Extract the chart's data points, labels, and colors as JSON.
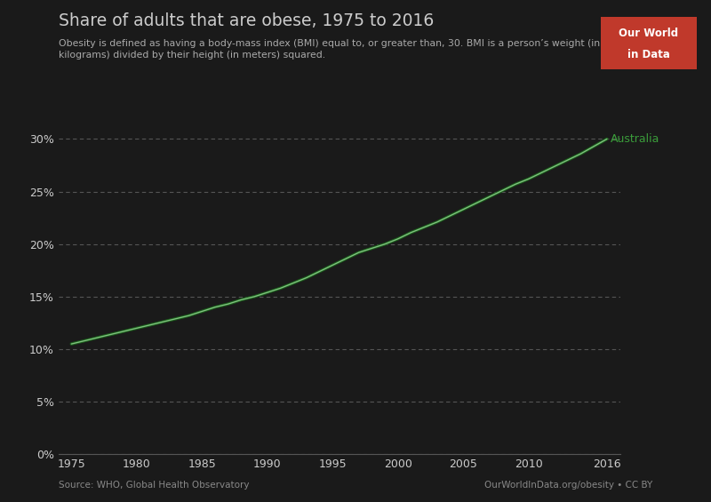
{
  "title": "Share of adults that are obese, 1975 to 2016",
  "subtitle": "Obesity is defined as having a body-mass index (BMI) equal to, or greater than, 30. BMI is a person’s weight (in\nkilograms) divided by their height (in meters) squared.",
  "source_left": "Source: WHO, Global Health Observatory",
  "source_right": "OurWorldInData.org/obesity • CC BY",
  "logo_text1": "Our World",
  "logo_text2": "in Data",
  "background_color": "#1a1a1a",
  "text_color": "#cccccc",
  "title_color": "#cccccc",
  "grid_color": "#555555",
  "line_color_dark": "#1a5e1a",
  "line_color_light": "#7fbf7f",
  "label_color": "#3a9c3a",
  "logo_bg": "#c0392b",
  "logo_text_color": "#ffffff",
  "years": [
    1975,
    1976,
    1977,
    1978,
    1979,
    1980,
    1981,
    1982,
    1983,
    1984,
    1985,
    1986,
    1987,
    1988,
    1989,
    1990,
    1991,
    1992,
    1993,
    1994,
    1995,
    1996,
    1997,
    1998,
    1999,
    2000,
    2001,
    2002,
    2003,
    2004,
    2005,
    2006,
    2007,
    2008,
    2009,
    2010,
    2011,
    2012,
    2013,
    2014,
    2015,
    2016
  ],
  "values": [
    0.105,
    0.108,
    0.111,
    0.114,
    0.117,
    0.12,
    0.123,
    0.126,
    0.129,
    0.132,
    0.136,
    0.14,
    0.143,
    0.147,
    0.15,
    0.154,
    0.158,
    0.163,
    0.168,
    0.174,
    0.18,
    0.186,
    0.192,
    0.196,
    0.2,
    0.205,
    0.211,
    0.216,
    0.221,
    0.227,
    0.233,
    0.239,
    0.245,
    0.251,
    0.257,
    0.262,
    0.268,
    0.274,
    0.28,
    0.286,
    0.293,
    0.3
  ],
  "xlim": [
    1974,
    2017
  ],
  "ylim": [
    0,
    0.32
  ],
  "yticks": [
    0.0,
    0.05,
    0.1,
    0.15,
    0.2,
    0.25,
    0.3
  ],
  "ytick_labels": [
    "0%",
    "5%",
    "10%",
    "15%",
    "20%",
    "25%",
    "30%"
  ],
  "xticks": [
    1975,
    1980,
    1985,
    1990,
    1995,
    2000,
    2005,
    2010,
    2016
  ]
}
